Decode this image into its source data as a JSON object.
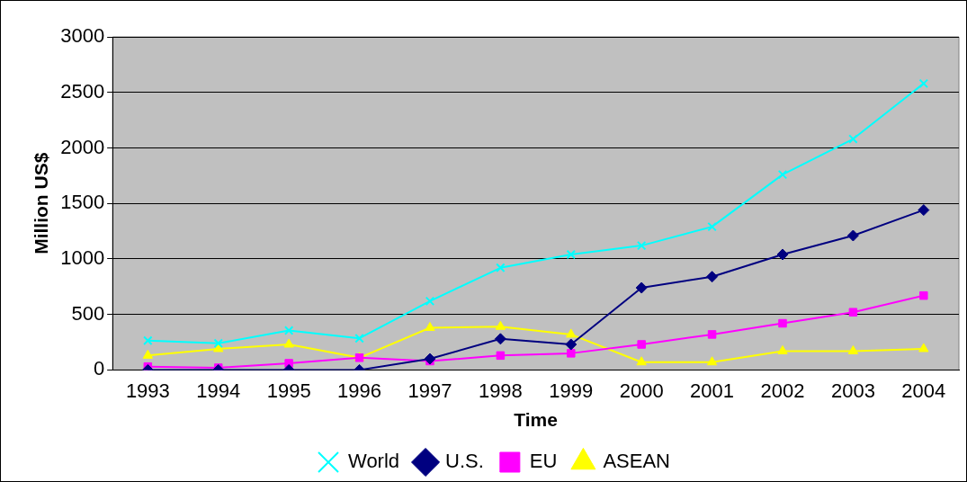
{
  "chart_data": {
    "type": "line",
    "xlabel": "Time",
    "ylabel": "Million US$",
    "categories": [
      "1993",
      "1994",
      "1995",
      "1996",
      "1997",
      "1998",
      "1999",
      "2000",
      "2001",
      "2002",
      "2003",
      "2004"
    ],
    "series": [
      {
        "name": "World",
        "color": "#00ffff",
        "marker": "cross",
        "values": [
          265,
          240,
          355,
          285,
          620,
          920,
          1040,
          1120,
          1290,
          1760,
          2080,
          2580
        ]
      },
      {
        "name": "U.S.",
        "color": "#000080",
        "marker": "diamond",
        "values": [
          0,
          0,
          0,
          0,
          100,
          280,
          230,
          740,
          840,
          1040,
          1210,
          1440
        ]
      },
      {
        "name": "EU",
        "color": "#ff00ff",
        "marker": "square",
        "values": [
          30,
          20,
          60,
          110,
          80,
          130,
          150,
          230,
          320,
          420,
          520,
          670
        ]
      },
      {
        "name": "ASEAN",
        "color": "#ffff00",
        "marker": "triangle",
        "values": [
          130,
          190,
          230,
          110,
          380,
          390,
          320,
          70,
          70,
          170,
          170,
          190
        ]
      }
    ],
    "ylim": [
      0,
      3000
    ],
    "yticks": [
      0,
      500,
      1000,
      1500,
      2000,
      2500,
      3000
    ],
    "grid": "y",
    "legend": "bottom",
    "line_style": "solid"
  }
}
